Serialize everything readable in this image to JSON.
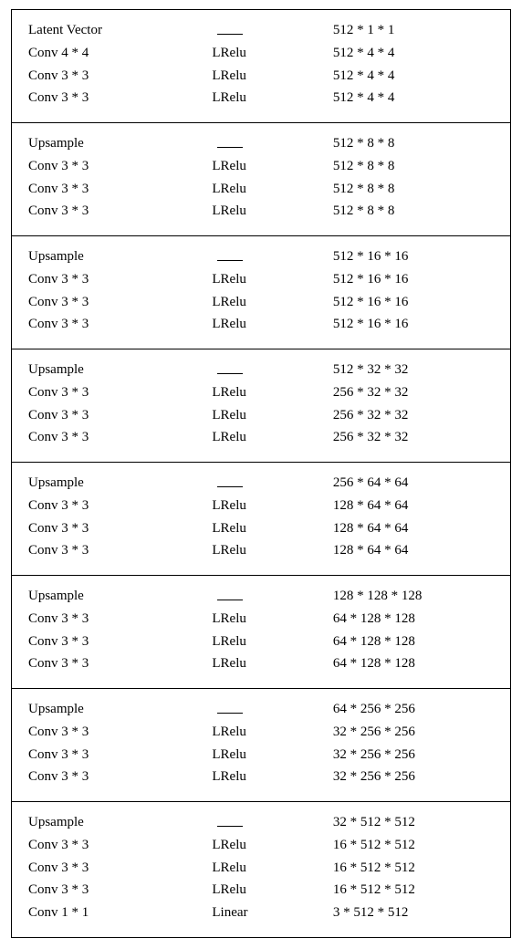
{
  "table": {
    "font_family": "Times New Roman",
    "font_size_pt": 11,
    "border_color": "#000000",
    "background_color": "#ffffff",
    "text_color": "#000000",
    "columns": [
      "layer",
      "activation",
      "output_shape"
    ],
    "col_widths_pct": [
      38,
      25,
      37
    ],
    "dash_glyph": "—",
    "blocks": [
      {
        "rows": [
          {
            "layer": "Latent Vector",
            "activation": "—",
            "shape": "512 * 1 * 1"
          },
          {
            "layer": "Conv 4 * 4",
            "activation": "LRelu",
            "shape": "512 * 4 * 4"
          },
          {
            "layer": "Conv 3 * 3",
            "activation": "LRelu",
            "shape": "512 * 4 * 4"
          },
          {
            "layer": "Conv 3 * 3",
            "activation": "LRelu",
            "shape": "512 * 4 * 4"
          }
        ]
      },
      {
        "rows": [
          {
            "layer": "Upsample",
            "activation": "—",
            "shape": "512 * 8 * 8"
          },
          {
            "layer": "Conv 3 * 3",
            "activation": "LRelu",
            "shape": "512 * 8 * 8"
          },
          {
            "layer": "Conv 3 * 3",
            "activation": "LRelu",
            "shape": "512 * 8 * 8"
          },
          {
            "layer": "Conv 3 * 3",
            "activation": "LRelu",
            "shape": "512 * 8 * 8"
          }
        ]
      },
      {
        "rows": [
          {
            "layer": "Upsample",
            "activation": "—",
            "shape": "512 * 16 * 16"
          },
          {
            "layer": "Conv 3 * 3",
            "activation": "LRelu",
            "shape": "512 * 16 * 16"
          },
          {
            "layer": "Conv 3 * 3",
            "activation": "LRelu",
            "shape": "512 * 16 * 16"
          },
          {
            "layer": "Conv 3 * 3",
            "activation": "LRelu",
            "shape": "512 * 16 * 16"
          }
        ]
      },
      {
        "rows": [
          {
            "layer": "Upsample",
            "activation": "—",
            "shape": "512 * 32 * 32"
          },
          {
            "layer": "Conv 3 * 3",
            "activation": "LRelu",
            "shape": "256 * 32 * 32"
          },
          {
            "layer": "Conv 3 * 3",
            "activation": "LRelu",
            "shape": "256 * 32 * 32"
          },
          {
            "layer": "Conv 3 * 3",
            "activation": "LRelu",
            "shape": "256 * 32 * 32"
          }
        ]
      },
      {
        "rows": [
          {
            "layer": "Upsample",
            "activation": "—",
            "shape": "256 * 64 * 64"
          },
          {
            "layer": "Conv 3 * 3",
            "activation": "LRelu",
            "shape": "128 * 64 * 64"
          },
          {
            "layer": "Conv 3 * 3",
            "activation": "LRelu",
            "shape": "128 * 64 * 64"
          },
          {
            "layer": "Conv 3 * 3",
            "activation": "LRelu",
            "shape": "128 * 64 * 64"
          }
        ]
      },
      {
        "rows": [
          {
            "layer": "Upsample",
            "activation": "—",
            "shape": "128 * 128 * 128"
          },
          {
            "layer": "Conv 3 * 3",
            "activation": "LRelu",
            "shape": "64 * 128 * 128"
          },
          {
            "layer": "Conv 3 * 3",
            "activation": "LRelu",
            "shape": "64 * 128 * 128"
          },
          {
            "layer": "Conv 3 * 3",
            "activation": "LRelu",
            "shape": "64 * 128 * 128"
          }
        ]
      },
      {
        "rows": [
          {
            "layer": "Upsample",
            "activation": "—",
            "shape": "64  * 256 * 256"
          },
          {
            "layer": "Conv 3 * 3",
            "activation": "LRelu",
            "shape": "32  * 256 * 256"
          },
          {
            "layer": "Conv 3 * 3",
            "activation": "LRelu",
            "shape": "32  * 256 * 256"
          },
          {
            "layer": "Conv 3 * 3",
            "activation": "LRelu",
            "shape": "32  * 256 * 256"
          }
        ]
      },
      {
        "rows": [
          {
            "layer": "Upsample",
            "activation": "—",
            "shape": "32  * 512 * 512"
          },
          {
            "layer": "Conv 3 * 3",
            "activation": "LRelu",
            "shape": "16  * 512 * 512"
          },
          {
            "layer": "Conv 3 * 3",
            "activation": "LRelu",
            "shape": "16  * 512 * 512"
          },
          {
            "layer": "Conv 3 * 3",
            "activation": "LRelu",
            "shape": "16  * 512 * 512"
          },
          {
            "layer": "Conv 1 * 1",
            "activation": "Linear",
            "shape": "3  * 512 * 512"
          }
        ]
      }
    ]
  }
}
